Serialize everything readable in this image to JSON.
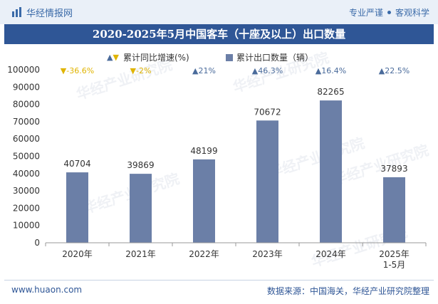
{
  "header": {
    "brand_name": "华经情报网",
    "tagline_left": "专业严谨",
    "tagline_right": "客观科学"
  },
  "title": "2020-2025年5月中国客车（十座及以上）出口数量",
  "legend": {
    "growth_label": "累计同比增速(%)",
    "bar_label": "累计出口数量（辆）"
  },
  "watermark_text": "华经产业研究院",
  "footer": {
    "website": "www.huaon.com",
    "source": "数据来源：中国海关，华经产业研究院整理"
  },
  "colors": {
    "bar": "#6b7fa7",
    "up": "#4a6b9b",
    "down": "#e0b400",
    "title_bg": "#2f5696",
    "axis_text": "#333333"
  },
  "chart_data": {
    "type": "bar",
    "categories": [
      "2020年",
      "2021年",
      "2022年",
      "2023年",
      "2024年",
      "2025年\n1-5月"
    ],
    "series": [
      {
        "name": "累计出口数量（辆）",
        "values": [
          40704,
          39869,
          48199,
          70672,
          82265,
          37893
        ]
      }
    ],
    "growth": [
      {
        "label": "-36.6%",
        "direction": "down"
      },
      {
        "label": "-2%",
        "direction": "down"
      },
      {
        "label": "21%",
        "direction": "up"
      },
      {
        "label": "46.3%",
        "direction": "up"
      },
      {
        "label": "16.4%",
        "direction": "up"
      },
      {
        "label": "22.5%",
        "direction": "up"
      }
    ],
    "ylim": [
      0,
      100000
    ],
    "yticks": [
      0,
      10000,
      20000,
      30000,
      40000,
      50000,
      60000,
      70000,
      80000,
      90000,
      100000
    ],
    "grid": false,
    "legend_position": "top-center"
  }
}
